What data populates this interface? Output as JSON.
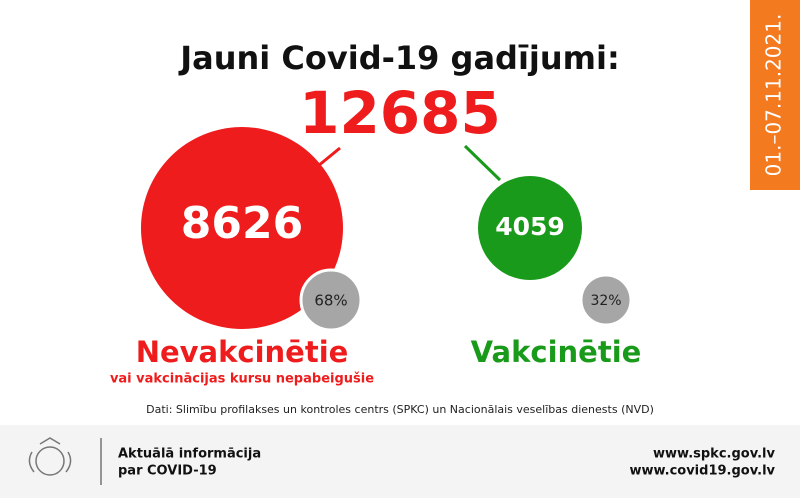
{
  "header": {
    "title": "Jauni Covid-19 gadījumi:",
    "total": "12685",
    "date": "01.–07.11.2021."
  },
  "groups": [
    {
      "value": "8626",
      "percent": "68%",
      "label": "Nevakcinētie",
      "sublabel": "vai vakcinācijas kursu nepabeigušie"
    },
    {
      "value": "4059",
      "percent": "32%",
      "label": "Vakcinētie"
    }
  ],
  "source": "Dati: Slimību profilakses un kontroles centrs (SPKC) un Nacionālais veselības dienests (NVD)",
  "footer": {
    "info_line1": "Aktuālā informācija",
    "info_line2": "par COVID-19",
    "link1": "www.spkc.gov.lv",
    "link2": "www.covid19.gov.lv"
  }
}
